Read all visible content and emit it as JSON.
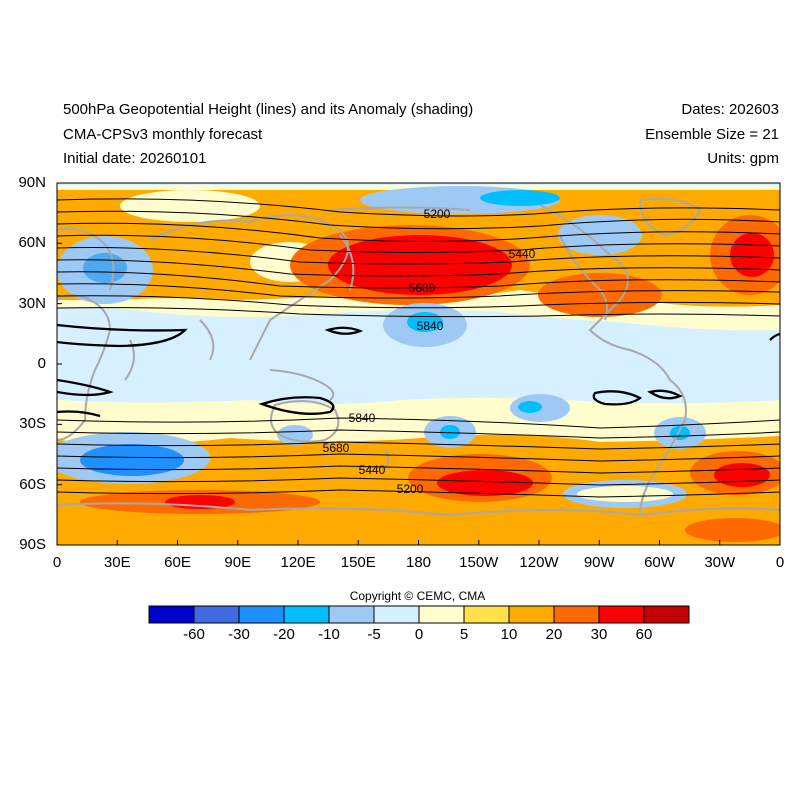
{
  "titles": {
    "left_1": "500hPa Geopotential Height (lines) and its Anomaly (shading)",
    "left_2": "CMA-CPSv3 monthly forecast",
    "left_3": "Initial date: 20260101",
    "right_1": "Dates: 202603",
    "right_2": "Ensemble Size = 21",
    "right_3": "Units: gpm"
  },
  "lat_ticks": [
    "90N",
    "60N",
    "30N",
    "0",
    "30S",
    "60S",
    "90S"
  ],
  "lon_ticks": [
    "0",
    "30E",
    "60E",
    "90E",
    "120E",
    "150E",
    "180",
    "150W",
    "120W",
    "90W",
    "60W",
    "30W",
    "0"
  ],
  "copyright": "Copyright © CEMC, CMA",
  "colorbar": {
    "colors": [
      "#0000cd",
      "#4169e1",
      "#1e90ff",
      "#00bfff",
      "#9fc9f5",
      "#d6f0ff",
      "#fffccd",
      "#ffe14a",
      "#ffaa00",
      "#ff6a00",
      "#ff0000",
      "#c40000"
    ],
    "labels": [
      "-60",
      "-30",
      "-20",
      "-10",
      "-5",
      "0",
      "5",
      "10",
      "20",
      "30",
      "60"
    ]
  },
  "contour_labels": [
    "5200",
    "5440",
    "5680",
    "5840",
    "5840",
    "5680",
    "5440",
    "5200"
  ],
  "colors": {
    "coastline": "#a8a8a8",
    "contour": "#000000"
  }
}
